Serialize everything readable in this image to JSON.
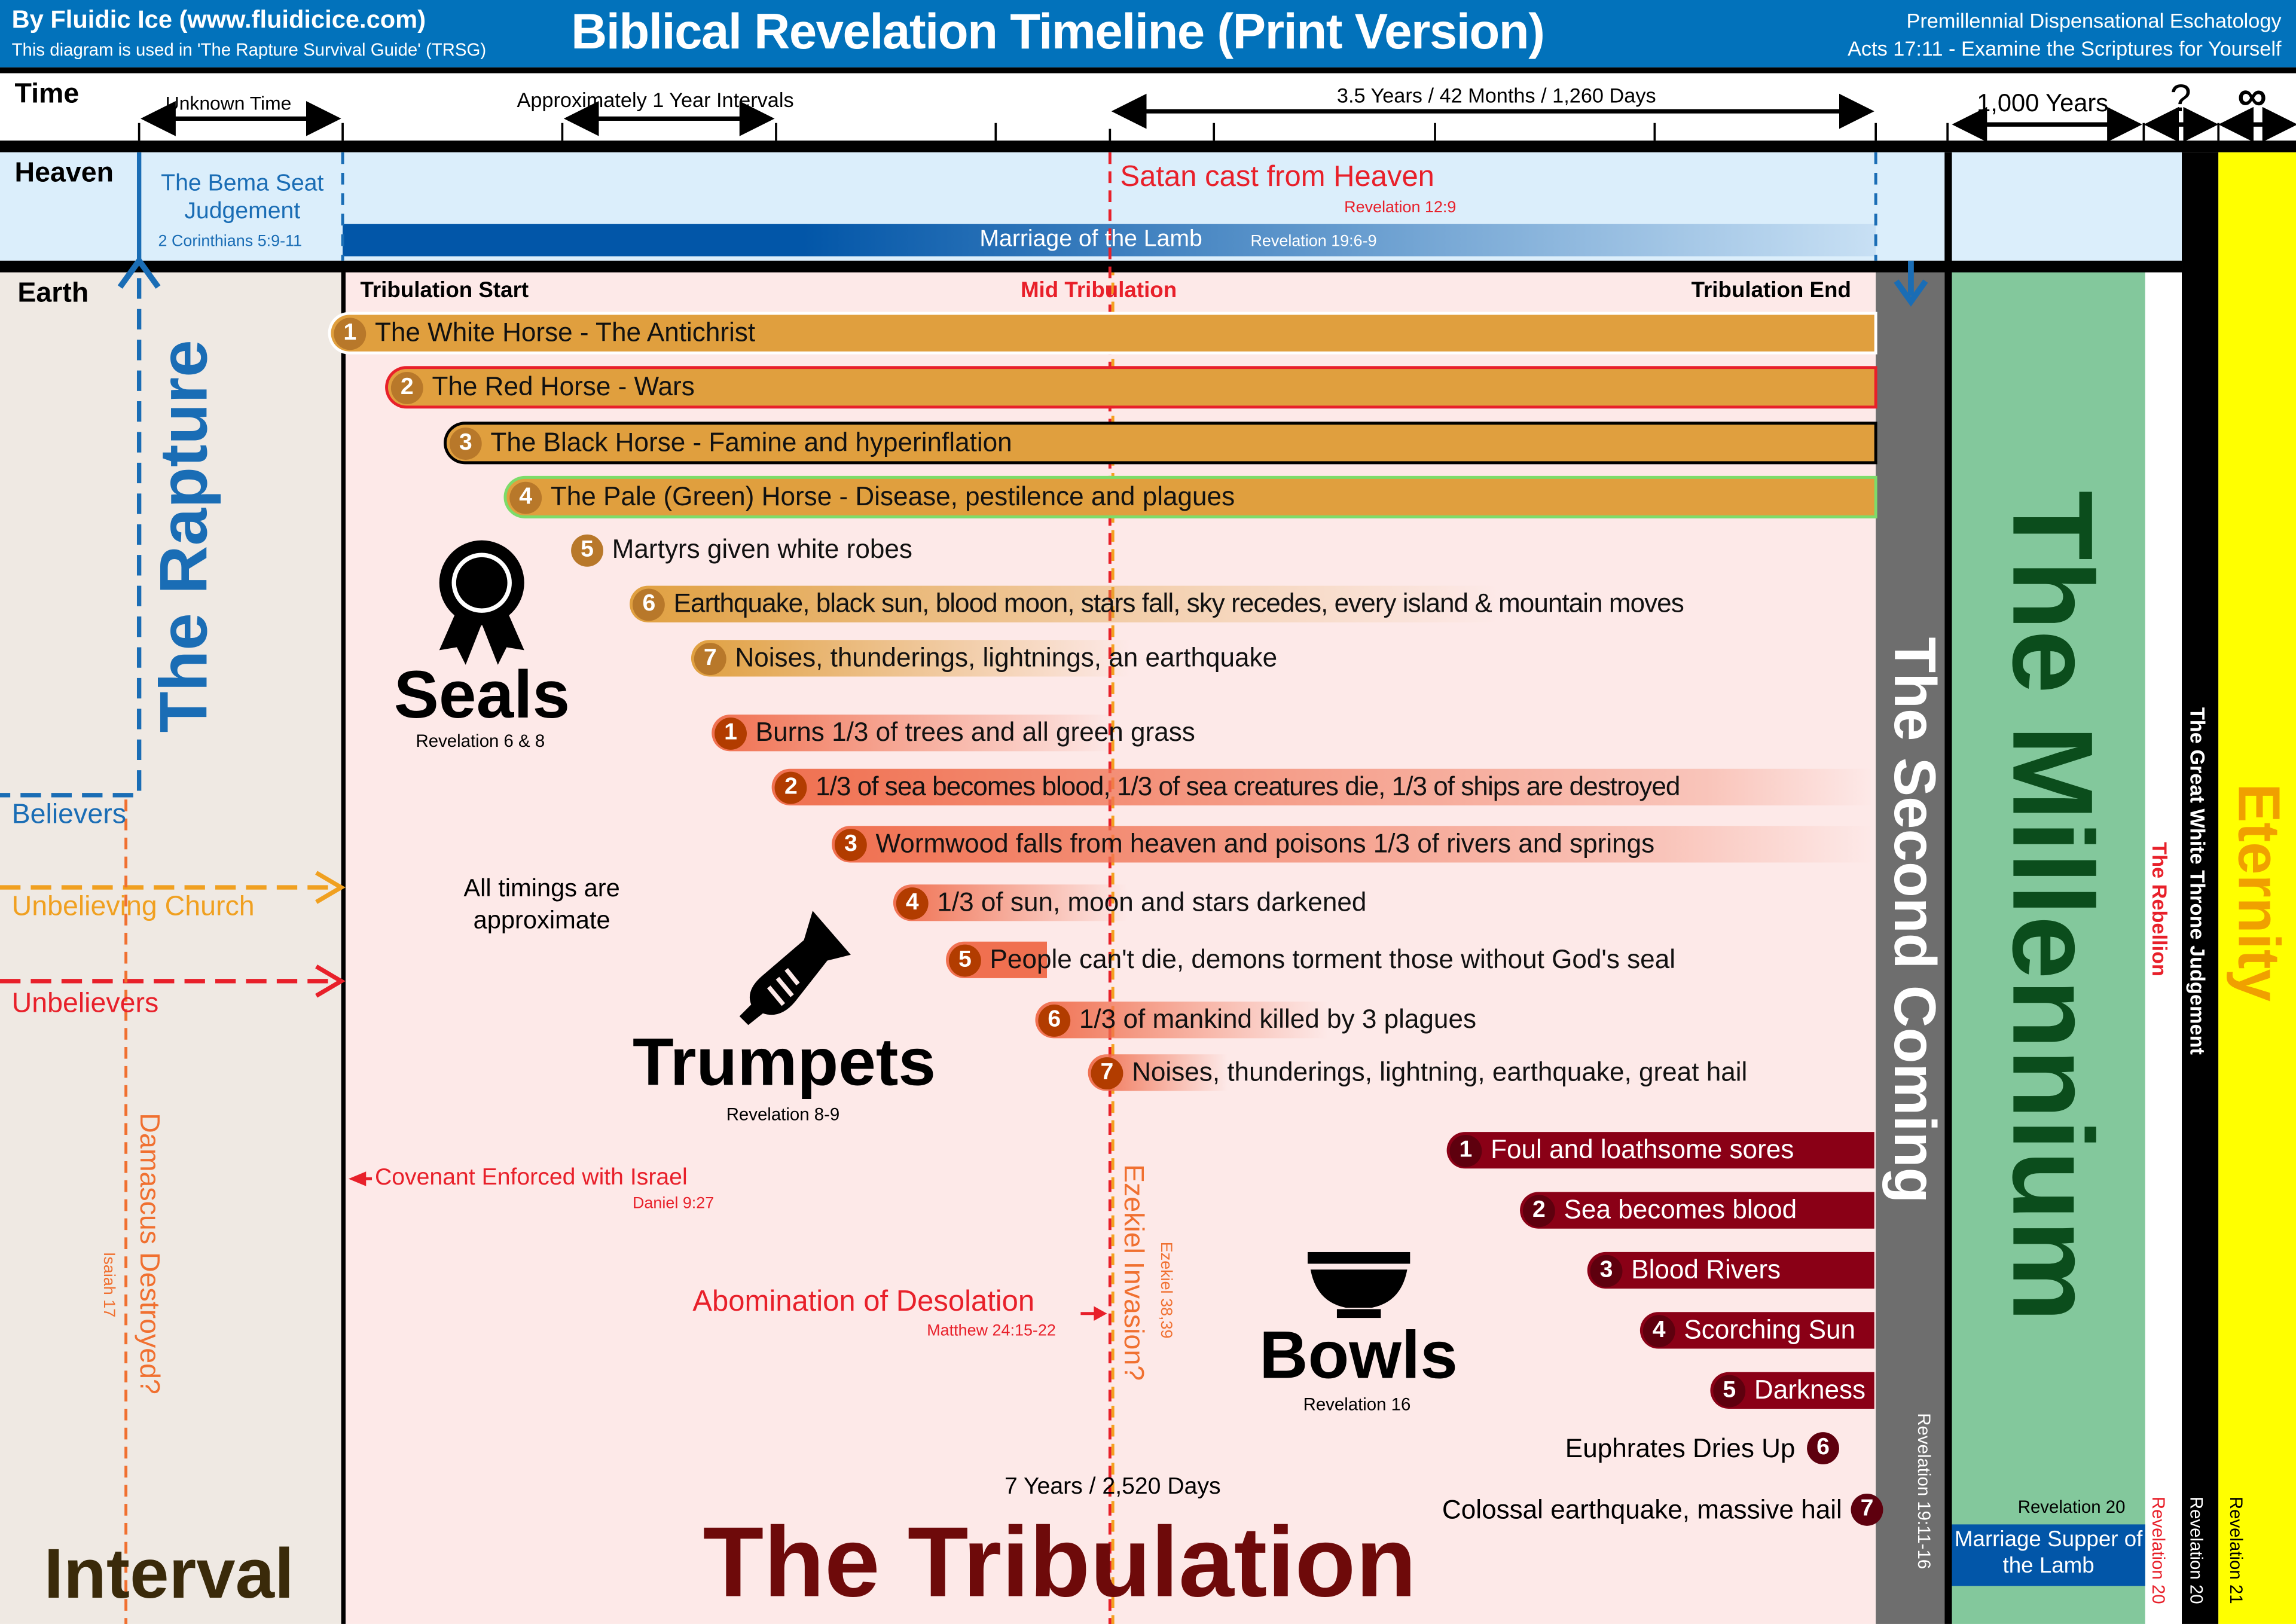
{
  "header": {
    "author": "By Fluidic Ice (www.fluidicice.com)",
    "usage": "This diagram is used in 'The Rapture Survival Guide' (TRSG)",
    "title": "Biblical Revelation Timeline (Print Version)",
    "eschatology": "Premillennial Dispensational Eschatology",
    "verse": "Acts 17:11 - Examine the Scriptures for Yourself"
  },
  "time": {
    "label": "Time",
    "unknown": "Unknown Time",
    "approx": "Approximately 1 Year Intervals",
    "half": "3.5 Years / 42 Months / 1,260 Days",
    "millennium": "1,000 Years",
    "question": "?",
    "infinity": "∞"
  },
  "heaven": {
    "label": "Heaven",
    "bema": "The Bema Seat Judgement",
    "bema_ref": "2 Corinthians 5:9-11",
    "satan": "Satan cast from Heaven",
    "satan_ref": "Revelation 12:9",
    "marriage": "Marriage of the Lamb",
    "marriage_ref": "Revelation 19:6-9"
  },
  "earth": {
    "label": "Earth",
    "start": "Tribulation Start",
    "mid": "Mid Tribulation",
    "end": "Tribulation End",
    "rapture": "The Rapture",
    "believers": "Believers",
    "unbelieving_church": "Unbelieving Church",
    "unbelievers": "Unbelievers",
    "damascus": "Damascus Destroyed?",
    "damascus_ref": "Isaiah 17",
    "interval": "Interval",
    "timings": "All timings are approximate",
    "covenant": "Covenant Enforced with Israel",
    "covenant_ref": "Daniel 9:27",
    "abomination": "Abomination of Desolation",
    "abomination_ref": "Matthew 24:15-22",
    "ezekiel": "Ezekiel Invasion?",
    "ezekiel_ref": "Ezekiel 38,39",
    "seven_years": "7 Years / 2,520 Days",
    "tribulation": "The Tribulation"
  },
  "seals": {
    "title": "Seals",
    "ref": "Revelation 6 & 8",
    "items": [
      {
        "n": "1",
        "text": "The White Horse - The Antichrist"
      },
      {
        "n": "2",
        "text": "The Red Horse - Wars"
      },
      {
        "n": "3",
        "text": "The Black Horse - Famine and hyperinflation"
      },
      {
        "n": "4",
        "text": "The Pale (Green) Horse - Disease, pestilence and plagues"
      },
      {
        "n": "5",
        "text": "Martyrs given white robes"
      },
      {
        "n": "6",
        "text": "Earthquake, black sun, blood moon, stars fall, sky recedes, every island & mountain moves"
      },
      {
        "n": "7",
        "text": "Noises, thunderings, lightnings, an earthquake"
      }
    ]
  },
  "trumpets": {
    "title": "Trumpets",
    "ref": "Revelation 8-9",
    "items": [
      {
        "n": "1",
        "text": "Burns 1/3 of trees and all green grass"
      },
      {
        "n": "2",
        "text": "1/3 of sea becomes blood, 1/3 of sea creatures die, 1/3 of ships are destroyed"
      },
      {
        "n": "3",
        "text": "Wormwood falls from heaven and poisons 1/3 of rivers and springs"
      },
      {
        "n": "4",
        "text": "1/3 of sun, moon and stars darkened"
      },
      {
        "n": "5",
        "text": "People can't die, demons torment those without God's seal"
      },
      {
        "n": "6",
        "text": "1/3 of mankind killed by 3 plagues"
      },
      {
        "n": "7",
        "text": "Noises, thunderings, lightning, earthquake, great hail"
      }
    ]
  },
  "bowls": {
    "title": "Bowls",
    "ref": "Revelation 16",
    "items": [
      {
        "n": "1",
        "text": "Foul and loathsome sores"
      },
      {
        "n": "2",
        "text": "Sea becomes blood"
      },
      {
        "n": "3",
        "text": "Blood Rivers"
      },
      {
        "n": "4",
        "text": "Scorching Sun"
      },
      {
        "n": "5",
        "text": "Darkness"
      },
      {
        "n": "6",
        "text": "Euphrates Dries Up"
      },
      {
        "n": "7",
        "text": "Colossal earthquake, massive hail"
      }
    ]
  },
  "second_coming": {
    "title": "The Second Coming",
    "ref": "Revelation 19:11-16"
  },
  "millennium": {
    "title": "The Millennium",
    "ref": "Revelation 20",
    "supper": "Marriage Supper of the Lamb"
  },
  "rebellion": {
    "title": "The Rebellion",
    "ref": "Revelation 20"
  },
  "white_throne": {
    "title": "The Great White Throne Judgement",
    "ref": "Revelation 20"
  },
  "eternity": {
    "title": "Eternity",
    "ref": "Revelation 21"
  },
  "colors": {
    "header": "#0272bb",
    "heaven": "#dbeefb",
    "tribulation": "#fde9e8",
    "interval": "#efe9e3",
    "millennium": "#83c89c",
    "eternity": "#ffff00"
  }
}
